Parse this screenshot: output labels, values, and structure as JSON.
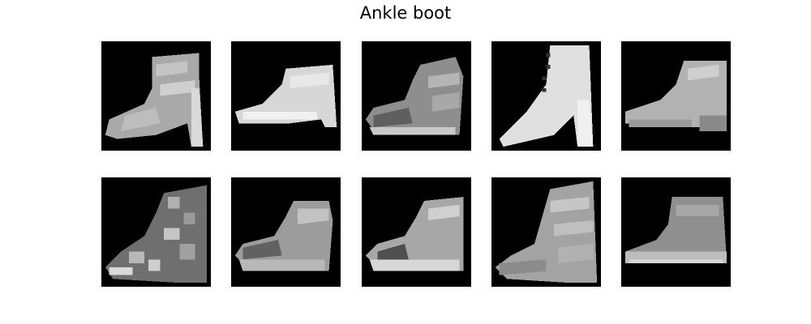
{
  "figure": {
    "title": "Ankle boot",
    "image_count": 10,
    "subject": "grayscale-ankle-boot"
  }
}
